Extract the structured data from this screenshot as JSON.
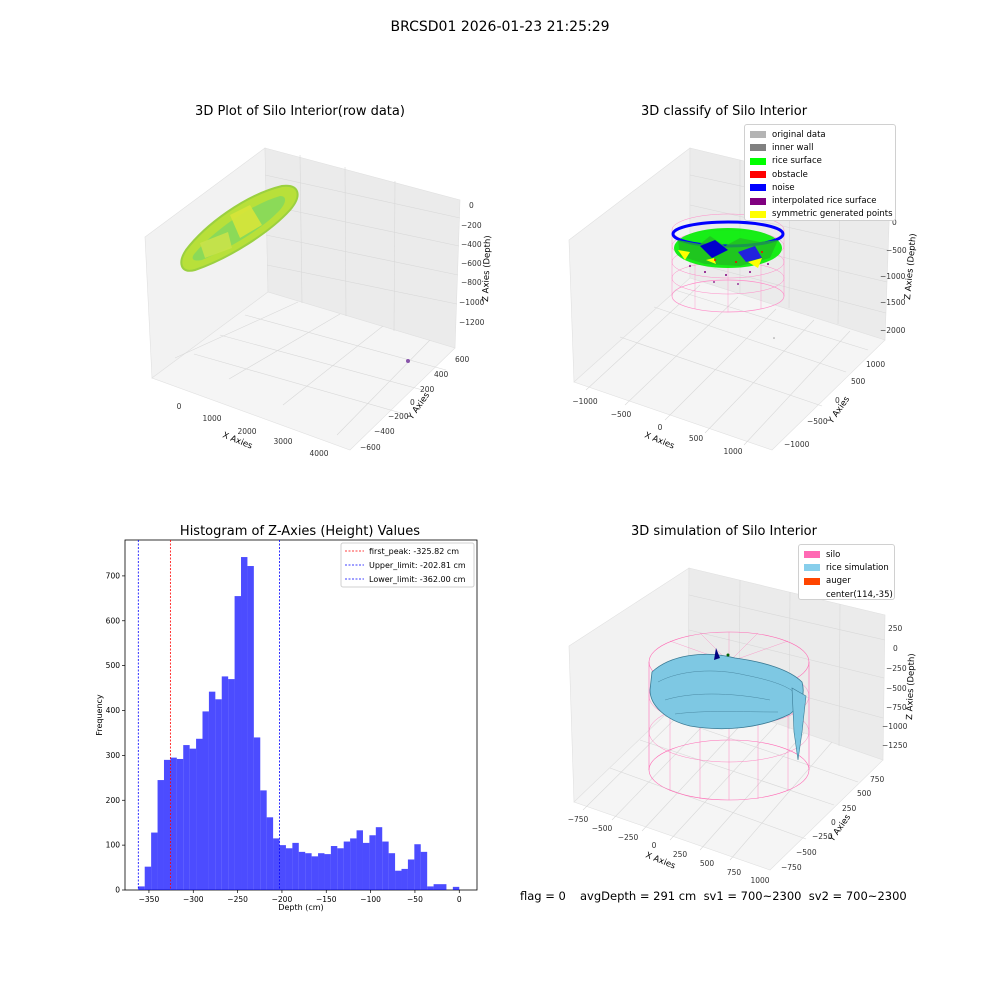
{
  "suptitle": "BRCSD01 2026-01-23 21:25:29",
  "panels": {
    "raw": {
      "title": "3D Plot of Silo Interior(row data)",
      "xlabel": "X Axies",
      "ylabel": "Y Axies",
      "zlabel": "Z Axies (Depth)",
      "xticks": [
        "0",
        "1000",
        "2000",
        "3000",
        "4000"
      ],
      "yticks": [
        "600",
        "400",
        "200",
        "0",
        "−200",
        "−400",
        "−600"
      ],
      "zticks": [
        "0",
        "−200",
        "−400",
        "−600",
        "−800",
        "−1000",
        "−1200"
      ]
    },
    "classify": {
      "title": "3D classify of Silo Interior",
      "xlabel": "X Axies",
      "ylabel": "Y Axies",
      "zlabel": "Z Axies (Depth)",
      "xticks": [
        "−1000",
        "−500",
        "0",
        "500",
        "1000"
      ],
      "yticks": [
        "1000",
        "500",
        "0",
        "−500",
        "−1000"
      ],
      "zticks": [
        "0",
        "−500",
        "−1000",
        "−1500",
        "−2000"
      ],
      "legend": [
        {
          "label": "original data",
          "color": "#b4b4b4"
        },
        {
          "label": "inner wall",
          "color": "#808080"
        },
        {
          "label": "rice surface",
          "color": "#00ff00"
        },
        {
          "label": "obstacle",
          "color": "#ff0000"
        },
        {
          "label": "noise",
          "color": "#0000ff"
        },
        {
          "label": "interpolated rice surface",
          "color": "#800080"
        },
        {
          "label": "symmetric generated points",
          "color": "#ffff00"
        }
      ]
    },
    "simulation": {
      "title": "3D simulation of Silo Interior",
      "xlabel": "X Axies",
      "ylabel": "Y Axies",
      "zlabel": "Z Axies (Depth)",
      "xticks": [
        "−750",
        "−500",
        "−250",
        "0",
        "250",
        "500",
        "750",
        "1000"
      ],
      "yticks": [
        "750",
        "500",
        "250",
        "0",
        "−250",
        "−500",
        "−750"
      ],
      "zticks": [
        "250",
        "0",
        "−250",
        "−500",
        "−750",
        "−1000",
        "−1250"
      ],
      "legend": [
        {
          "label": "silo",
          "color": "#ff69b4"
        },
        {
          "label": "rice simulation",
          "color": "#87ceeb"
        },
        {
          "label": "auger",
          "color": "#ff4500"
        },
        {
          "label": "center(114,-35)",
          "color": ""
        }
      ]
    }
  },
  "chart_data": {
    "type": "bar",
    "title": "Histogram of Z-Axies (Height) Values",
    "xlabel": "Depth (cm)",
    "ylabel": "Frequency",
    "xlim": [
      -377,
      20
    ],
    "ylim": [
      0,
      780
    ],
    "xticks": [
      -350,
      -300,
      -250,
      -200,
      -150,
      -100,
      -50,
      0
    ],
    "yticks": [
      0,
      100,
      200,
      300,
      400,
      500,
      600,
      700
    ],
    "bin_start": -362,
    "bin_width": 7.24,
    "values": [
      8,
      52,
      128,
      245,
      290,
      295,
      292,
      323,
      315,
      337,
      398,
      442,
      425,
      476,
      470,
      655,
      742,
      722,
      340,
      222,
      162,
      115,
      100,
      93,
      105,
      85,
      82,
      75,
      82,
      80,
      98,
      93,
      108,
      115,
      133,
      105,
      122,
      140,
      108,
      82,
      43,
      47,
      68,
      102,
      85,
      8,
      13,
      13,
      0,
      7
    ],
    "bar_color": "#0000ff",
    "bar_alpha": 0.7,
    "lines": [
      {
        "x": -325.82,
        "color": "#ff0000",
        "label": "first_peak: -325.82 cm"
      },
      {
        "x": -202.81,
        "color": "#0000ff",
        "label": "Upper_limit: -202.81 cm"
      },
      {
        "x": -362.0,
        "color": "#0000ff",
        "label": "Lower_limit: -362.00 cm"
      }
    ],
    "legend_position": "upper right"
  },
  "footer": {
    "flag": "flag = 0",
    "metrics": "avgDepth = 291 cm  sv1 = 700~2300  sv2 = 700~2300"
  }
}
